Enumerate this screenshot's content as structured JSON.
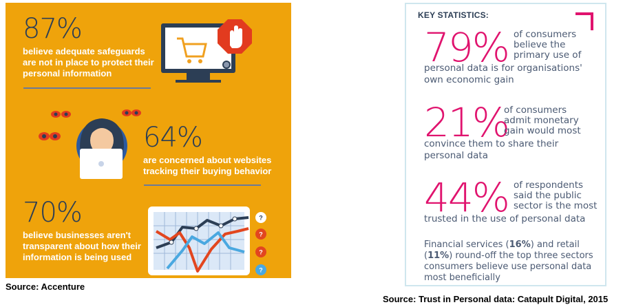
{
  "accenture": {
    "stat1": {
      "number": "87%",
      "text": "believe adequate safeguards are not in place to protect their personal information"
    },
    "stat2": {
      "number": "64%",
      "text": "are concerned about websites tracking their buying behavior"
    },
    "stat3": {
      "number": "70%",
      "text": "believe businesses aren't transparent about how their information is being used"
    },
    "source": "Source: Accenture",
    "chart_marks": [
      "?",
      "?",
      "?",
      "?"
    ]
  },
  "catapult": {
    "title": "KEY STATISTICS:",
    "stat1": {
      "number": "79%",
      "line1": "of consumers",
      "line2": "believe the",
      "line3": "primary use of",
      "line4": "personal data is for organisations'",
      "line5": "own economic gain"
    },
    "stat2": {
      "number": "21%",
      "line1": "of consumers",
      "line2": "admit monetary",
      "line3": "gain would most",
      "line4": "convince them to share their",
      "line5": "personal data"
    },
    "stat3": {
      "number": "44%",
      "line1": "of respondents",
      "line2": "said the public",
      "line3": "sector is the most",
      "line4": "trusted in the use of personal data"
    },
    "footer": {
      "p1": "Financial services (",
      "v1": "16%",
      "p2": ") and retail",
      "p3": "(",
      "v2": "11%",
      "p4": ") round-off the top three sectors",
      "line3": "consumers believe use personal data",
      "line4": "most beneficially"
    },
    "source": "Source: Trust in Personal data: Catapult Digital, 2015"
  },
  "colors": {
    "orange": "#efa30b",
    "navy": "#2c3e55",
    "pink": "#e0136e",
    "border": "#cfe6ee"
  }
}
